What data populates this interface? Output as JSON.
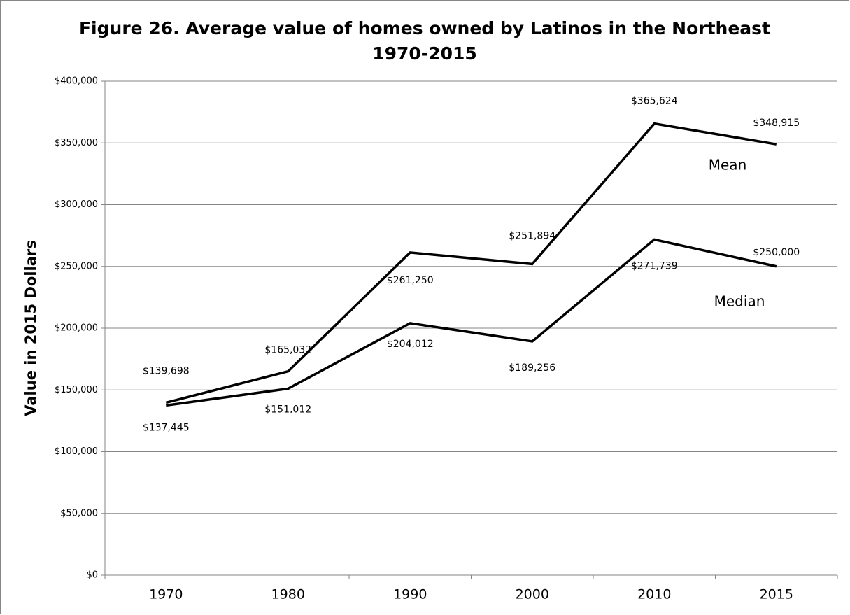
{
  "chart_data": {
    "type": "line",
    "title": [
      "Figure 26. Average value of homes owned by Latinos in the Northeast",
      "1970-2015"
    ],
    "y_label": "Value in 2015 Dollars",
    "categories": [
      "1970",
      "1980",
      "1990",
      "2000",
      "2010",
      "2015"
    ],
    "series": [
      {
        "name": "Mean",
        "color": "#000000",
        "values": [
          139698,
          165032,
          261250,
          251894,
          365624,
          348915
        ],
        "value_labels": [
          "$139,698",
          "$165,032",
          "$261,250",
          "$251,894",
          "$365,624",
          "$348,915"
        ]
      },
      {
        "name": "Median",
        "color": "#000000",
        "values": [
          137445,
          151012,
          204012,
          189256,
          271739,
          250000
        ],
        "value_labels": [
          "$137,445",
          "$151,012",
          "$204,012",
          "$189,256",
          "$271,739",
          "$250,000"
        ]
      }
    ],
    "ylim": [
      0,
      400000
    ],
    "yticks": [
      {
        "value": 0,
        "label": "$0"
      },
      {
        "value": 50000,
        "label": "$50,000"
      },
      {
        "value": 100000,
        "label": "$100,000"
      },
      {
        "value": 150000,
        "label": "$150,000"
      },
      {
        "value": 200000,
        "label": "$200,000"
      },
      {
        "value": 250000,
        "label": "$250,000"
      },
      {
        "value": 300000,
        "label": "$300,000"
      },
      {
        "value": 350000,
        "label": "$350,000"
      },
      {
        "value": 400000,
        "label": "$400,000"
      }
    ],
    "grid": true
  }
}
